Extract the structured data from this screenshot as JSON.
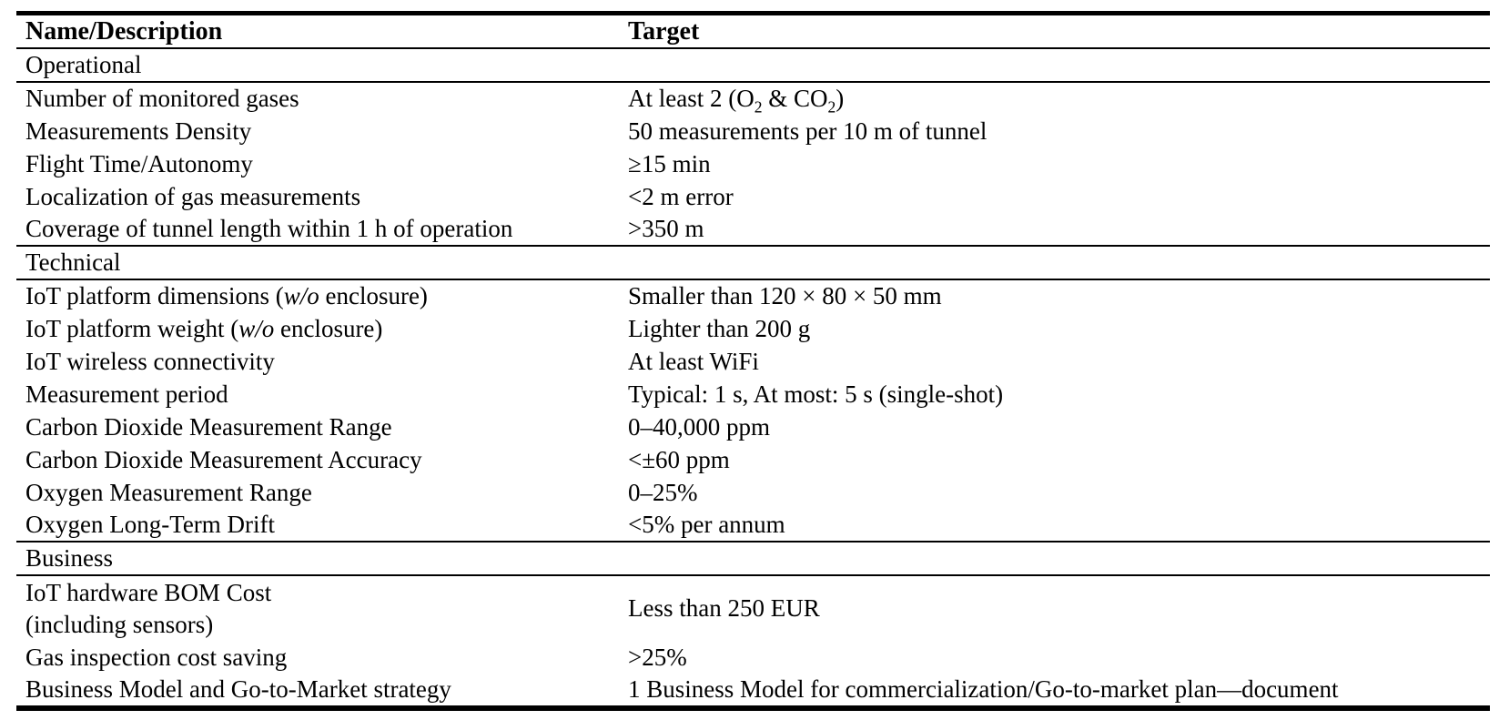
{
  "table": {
    "header": {
      "name": "Name/Description",
      "target": "Target"
    },
    "sections": [
      {
        "label": "Operational",
        "rows": [
          {
            "name": "Number of monitored gases",
            "target_parts": {
              "pre": "At least 2 (O",
              "sub1": "2",
              "mid": " & CO",
              "sub2": "2",
              "post": ")"
            }
          },
          {
            "name": "Measurements Density",
            "target": "50 measurements per 10 m of tunnel"
          },
          {
            "name": "Flight Time/Autonomy",
            "target": "≥15 min"
          },
          {
            "name": "Localization of gas measurements",
            "target": "<2 m error"
          },
          {
            "name": "Coverage of tunnel length within 1 h of operation",
            "target": ">350 m"
          }
        ]
      },
      {
        "label": "Technical",
        "rows": [
          {
            "name_parts": {
              "pre": "IoT platform dimensions (",
              "italic": "w/o",
              "post": " enclosure)"
            },
            "target": "Smaller than 120 × 80 × 50 mm"
          },
          {
            "name_parts": {
              "pre": "IoT platform weight (",
              "italic": "w/o",
              "post": " enclosure)"
            },
            "target": "Lighter than 200 g"
          },
          {
            "name": "IoT wireless connectivity",
            "target": "At least WiFi"
          },
          {
            "name": "Measurement period",
            "target": "Typical: 1 s, At most: 5 s (single-shot)"
          },
          {
            "name": "Carbon Dioxide Measurement Range",
            "target": "0–40,000 ppm"
          },
          {
            "name": "Carbon Dioxide Measurement Accuracy",
            "target": "<±60 ppm"
          },
          {
            "name": "Oxygen Measurement Range",
            "target": "0–25%"
          },
          {
            "name": "Oxygen Long-Term Drift",
            "target": "<5% per annum"
          }
        ]
      },
      {
        "label": "Business",
        "rows": [
          {
            "name_line1": "IoT hardware BOM Cost",
            "name_line2": "(including sensors)",
            "target": "Less than 250 EUR"
          },
          {
            "name": "Gas inspection cost saving",
            "target": ">25%"
          },
          {
            "name": "Business Model and Go-to-Market strategy",
            "target": "1 Business Model for commercialization/Go-to-market plan—document"
          }
        ]
      }
    ]
  },
  "colors": {
    "text": "#000000",
    "background": "#ffffff",
    "rule": "#000000"
  }
}
